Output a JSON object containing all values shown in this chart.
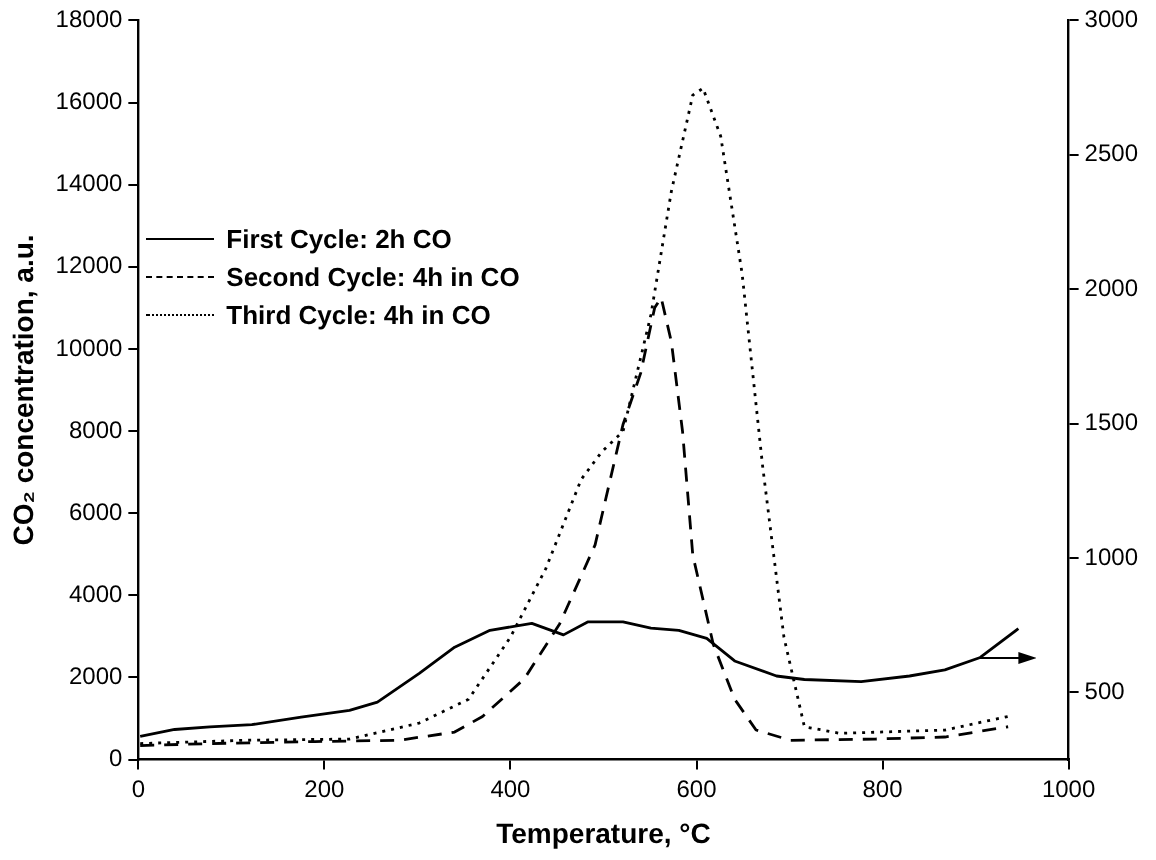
{
  "chart_data": {
    "type": "line",
    "xlabel": "Temperature, °C",
    "ylabel": "CO₂ concentration, a.u.",
    "xlim": [
      0,
      1000
    ],
    "xticks": [
      0,
      200,
      400,
      600,
      800,
      1000
    ],
    "ylim": [
      0,
      18000
    ],
    "yticks": [
      0,
      2000,
      4000,
      6000,
      8000,
      10000,
      12000,
      14000,
      16000,
      18000
    ],
    "y2lim": [
      250,
      3000
    ],
    "y2ticks": [
      500,
      1000,
      1500,
      2000,
      2500,
      3000
    ],
    "grid": false,
    "legend": "top left",
    "marker": "none",
    "series": [
      {
        "name": "First Cycle: 2h CO",
        "color": "#000000",
        "line_style": "solid",
        "axis": "y2",
        "x": [
          2,
          39,
          77,
          122,
          175,
          227,
          257,
          302,
          340,
          378,
          423,
          457,
          483,
          521,
          551,
          581,
          611,
          641,
          686,
          716,
          777,
          829,
          867,
          905,
          946
        ],
        "values": [
          336,
          362,
          372,
          380,
          408,
          433,
          464,
          571,
          668,
          731,
          757,
          714,
          762,
          762,
          739,
          731,
          701,
          617,
          561,
          548,
          540,
          561,
          584,
          630,
          737
        ]
      },
      {
        "name": "Second Cycle: 4h in CO",
        "color": "#000000",
        "line_style": "dashed",
        "x": [
          2,
          77,
          190,
          280,
          340,
          370,
          415,
          453,
          491,
          521,
          540,
          555,
          562,
          573,
          585,
          596,
          618,
          641,
          664,
          701,
          792,
          867,
          935
        ],
        "values": [
          340,
          390,
          440,
          470,
          670,
          1050,
          1970,
          3310,
          5230,
          8160,
          9410,
          11000,
          11250,
          10170,
          7990,
          4980,
          2810,
          1470,
          720,
          470,
          500,
          550,
          800
        ]
      },
      {
        "name": "Third Cycle: 4h in CO",
        "color": "#000000",
        "line_style": "dotted",
        "x": [
          2,
          114,
          227,
          302,
          355,
          400,
          438,
          476,
          498,
          521,
          551,
          573,
          596,
          607,
          626,
          649,
          671,
          694,
          716,
          754,
          867,
          935
        ],
        "values": [
          390,
          470,
          500,
          890,
          1470,
          2980,
          4650,
          6820,
          7490,
          7990,
          10830,
          13840,
          16180,
          16350,
          15180,
          11840,
          7160,
          2980,
          800,
          640,
          720,
          1050
        ]
      }
    ]
  }
}
